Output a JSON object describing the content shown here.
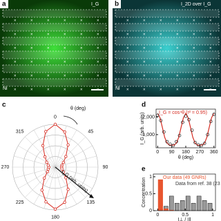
{
  "panels": [
    {
      "label": "a",
      "tag": "I_G",
      "ni": "Ni"
    },
    {
      "label": "b",
      "tag": "I_2D over I_G",
      "ni": "Ni"
    }
  ],
  "chart_data": [
    {
      "type": "polar",
      "panel_label": "c",
      "axis_label": "θ (deg)",
      "annotation": "I_G (arb. units)",
      "thetaticks": [
        0,
        45,
        90,
        135,
        180,
        225,
        270,
        315
      ],
      "theta": [
        0,
        15,
        30,
        45,
        60,
        75,
        90,
        105,
        120,
        135,
        150,
        165,
        180,
        195,
        210,
        225,
        240,
        255,
        270,
        285,
        300,
        315,
        330,
        345
      ],
      "series": [
        {
          "name": "I_G",
          "color": "#d62a20",
          "values": [
            1.0,
            0.85,
            0.6,
            0.35,
            0.22,
            0.16,
            0.15,
            0.16,
            0.22,
            0.35,
            0.6,
            0.85,
            0.98,
            0.84,
            0.62,
            0.36,
            0.21,
            0.17,
            0.15,
            0.17,
            0.23,
            0.34,
            0.58,
            0.86
          ]
        }
      ],
      "rlim": [
        0,
        1
      ]
    },
    {
      "type": "scatter-fit",
      "panel_label": "d",
      "y_label": "I_G (arb. units)",
      "x_label": "θ (deg)",
      "legend": "I_G = cos⁴θ (r² = 0.95)",
      "xlim": [
        -10,
        370
      ],
      "ylim": [
        250,
        2450
      ],
      "xticks": [
        0,
        90,
        180,
        270,
        360
      ],
      "yticks": [
        {
          "value": 1000,
          "label": "1,000"
        },
        {
          "value": 2000,
          "label": "2,000"
        }
      ],
      "points": {
        "name": "data",
        "color": "#222222",
        "x": [
          0,
          20,
          40,
          60,
          80,
          100,
          120,
          140,
          160,
          180,
          200,
          220,
          240,
          260,
          280,
          300,
          320,
          340,
          360
        ],
        "values": [
          2100,
          1800,
          1150,
          600,
          450,
          380,
          600,
          950,
          1700,
          2050,
          1850,
          1250,
          550,
          420,
          380,
          500,
          1000,
          1750,
          2150
        ]
      },
      "fit": {
        "name": "fit",
        "color": "#d62a20",
        "x": [
          0,
          15,
          30,
          45,
          60,
          75,
          90,
          105,
          120,
          135,
          150,
          165,
          180,
          195,
          210,
          225,
          240,
          255,
          270,
          285,
          300,
          315,
          330,
          345,
          360
        ],
        "values": [
          2200,
          1966,
          1413,
          850,
          513,
          408,
          400,
          408,
          513,
          850,
          1413,
          1966,
          2200,
          1966,
          1413,
          850,
          513,
          408,
          400,
          408,
          513,
          850,
          1413,
          1966,
          2200
        ]
      }
    },
    {
      "type": "histogram",
      "panel_label": "e",
      "y_label": "Concentration",
      "x_label": "I⊥ / I∥",
      "bins": [
        0,
        0.1,
        0.2,
        0.3,
        0.4,
        0.5,
        0.6,
        0.7,
        0.8,
        0.9,
        1.0
      ],
      "xlim": [
        -0.08,
        1.05
      ],
      "ylim": [
        0,
        1.08
      ],
      "xticks": [
        0,
        0.5,
        1
      ],
      "yticks": [
        0,
        0.5,
        1
      ],
      "series": [
        {
          "name": "Data from ref. 38 (23 GNRs)",
          "color": "#9a9a9a",
          "values": [
            0.22,
            0.13,
            0.43,
            0.22,
            0.3,
            0.43,
            0.22,
            0.43,
            0.3,
            0.22
          ]
        },
        {
          "name": "Our data (49 GNRs)",
          "color": "#e8552f",
          "values": [
            0.92,
            0.06,
            0.02,
            0,
            0,
            0,
            0,
            0,
            0,
            0
          ]
        }
      ]
    }
  ]
}
